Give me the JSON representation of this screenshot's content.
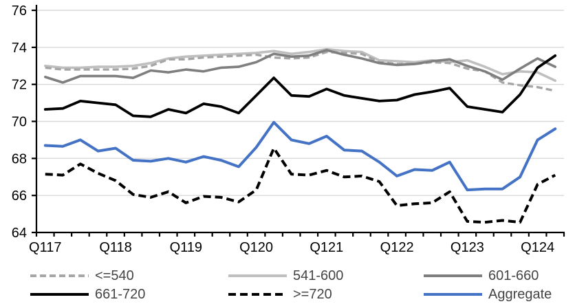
{
  "chart_data": {
    "type": "line",
    "title": "",
    "grid": true,
    "legend_position": "bottom",
    "colors": {
      "gridline": "#d9d9d9",
      "axis": "#000000",
      "axis_label": "#000000",
      "legend_text": "#444444"
    },
    "x_axis": {
      "categories_count": 30,
      "label_indices": [
        0,
        4,
        8,
        12,
        16,
        20,
        24,
        28
      ],
      "labels": [
        "Q117",
        "Q118",
        "Q119",
        "Q120",
        "Q121",
        "Q122",
        "Q123",
        "Q124"
      ]
    },
    "y_axis": {
      "min": 64,
      "max": 76,
      "tick_step": 2,
      "ticks": [
        64,
        66,
        68,
        70,
        72,
        74,
        76
      ]
    },
    "draw_order": [
      1,
      0,
      2,
      3,
      4,
      5
    ],
    "series": [
      {
        "name": "<=540",
        "color": "#a6a6a6",
        "dash": "9 5",
        "width": 3.4,
        "values": [
          72.9,
          72.8,
          72.8,
          72.8,
          72.8,
          72.85,
          73.0,
          73.35,
          73.35,
          73.45,
          73.5,
          73.55,
          73.6,
          73.45,
          73.4,
          73.45,
          73.75,
          73.7,
          73.65,
          73.2,
          73.1,
          73.1,
          73.2,
          73.15,
          72.85,
          72.7,
          72.1,
          71.95,
          71.85,
          71.65
        ]
      },
      {
        "name": "541-600",
        "color": "#bfbfbf",
        "dash": "",
        "width": 3.6,
        "values": [
          73.0,
          72.9,
          72.9,
          72.95,
          72.95,
          73.0,
          73.15,
          73.4,
          73.5,
          73.55,
          73.6,
          73.65,
          73.7,
          73.8,
          73.65,
          73.75,
          73.9,
          73.8,
          73.75,
          73.3,
          73.25,
          73.2,
          73.3,
          73.2,
          73.3,
          72.95,
          72.55,
          72.7,
          72.65,
          72.2
        ]
      },
      {
        "name": "601-660",
        "color": "#7f7f7f",
        "dash": "",
        "width": 3.6,
        "values": [
          72.4,
          72.1,
          72.45,
          72.45,
          72.45,
          72.35,
          72.75,
          72.65,
          72.8,
          72.7,
          72.9,
          72.95,
          73.2,
          73.65,
          73.5,
          73.55,
          73.85,
          73.6,
          73.4,
          73.15,
          73.05,
          73.1,
          73.25,
          73.35,
          73.0,
          72.7,
          72.25,
          72.85,
          73.4,
          72.95
        ]
      },
      {
        "name": "661-720",
        "color": "#000000",
        "dash": "",
        "width": 3.8,
        "values": [
          70.65,
          70.7,
          71.1,
          71.0,
          70.9,
          70.3,
          70.25,
          70.65,
          70.45,
          70.95,
          70.8,
          70.45,
          71.4,
          72.35,
          71.4,
          71.35,
          71.75,
          71.4,
          71.25,
          71.1,
          71.15,
          71.45,
          71.6,
          71.8,
          70.8,
          70.65,
          70.5,
          71.45,
          72.9,
          73.55
        ]
      },
      {
        "name": ">=720",
        "color": "#000000",
        "dash": "11 6",
        "width": 4.0,
        "values": [
          67.15,
          67.1,
          67.7,
          67.2,
          66.8,
          66.05,
          65.9,
          66.2,
          65.6,
          65.95,
          65.9,
          65.65,
          66.3,
          68.55,
          67.15,
          67.1,
          67.35,
          67.0,
          67.05,
          66.75,
          65.45,
          65.55,
          65.6,
          66.2,
          64.6,
          64.55,
          64.65,
          64.55,
          66.6,
          67.1
        ]
      },
      {
        "name": "Aggregate",
        "color": "#4472c4",
        "dash": "",
        "width": 4.0,
        "values": [
          68.7,
          68.65,
          69.0,
          68.4,
          68.55,
          67.9,
          67.85,
          68.0,
          67.8,
          68.1,
          67.9,
          67.55,
          68.6,
          69.95,
          69.0,
          68.8,
          69.2,
          68.45,
          68.4,
          67.8,
          67.05,
          67.4,
          67.35,
          67.8,
          66.3,
          66.35,
          66.35,
          67.0,
          69.0,
          69.6
        ]
      }
    ]
  }
}
